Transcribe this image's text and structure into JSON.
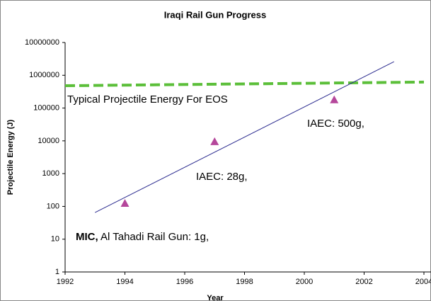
{
  "chart_data": {
    "type": "scatter",
    "title": "Iraqi Rail Gun Progress",
    "x_label": "Year",
    "y_label": "Projectile Energy (J)",
    "log_y": true,
    "xlim": [
      1992,
      2004
    ],
    "xticks": [
      1992,
      1994,
      1996,
      1998,
      2000,
      2002,
      2004
    ],
    "ylim": [
      1,
      10000000
    ],
    "yticks": [
      1,
      10,
      100,
      1000,
      10000,
      100000,
      1000000,
      10000000
    ],
    "points": {
      "x": [
        1994,
        1997,
        2001
      ],
      "values": [
        125,
        9500,
        180000
      ],
      "color": "#b5479b"
    },
    "trend_line": {
      "x": [
        1993,
        2003
      ],
      "values": [
        65,
        2600000
      ],
      "color": "#2b2b8f"
    },
    "reference_line": {
      "label": "Typical Projectile Energy For EOS",
      "x": [
        1992,
        2004
      ],
      "values": [
        480000,
        620000
      ],
      "color": "#5cbf3a"
    },
    "annotations": [
      {
        "text": "IAEC: 500g,"
      },
      {
        "text": "IAEC: 28g,"
      },
      {
        "bold": "MIC,",
        "text": " Al Tahadi Rail Gun: 1g,"
      }
    ]
  }
}
